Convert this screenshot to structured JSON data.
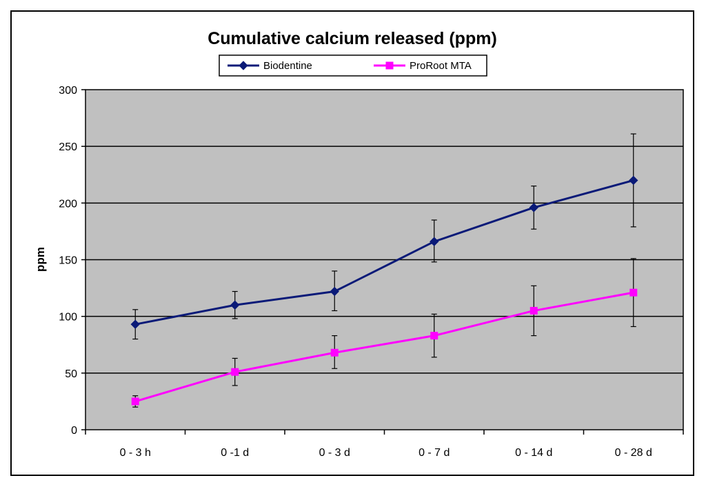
{
  "chart_data": {
    "type": "line",
    "title": "Cumulative calcium released (ppm)",
    "xlabel": "",
    "ylabel": "ppm",
    "ylim": [
      0,
      300
    ],
    "yticks": [
      0,
      50,
      100,
      150,
      200,
      250,
      300
    ],
    "grid": true,
    "legend_position": "top",
    "categories": [
      "0 - 3 h",
      "0 -1 d",
      "0 - 3 d",
      "0 - 7 d",
      "0 - 14 d",
      "0 - 28 d"
    ],
    "series": [
      {
        "name": "Biodentine",
        "color": "#0a1a78",
        "marker": "diamond",
        "values": [
          93,
          110,
          122,
          166,
          196,
          220
        ],
        "err_low": [
          80,
          98,
          105,
          148,
          177,
          179
        ],
        "err_high": [
          106,
          122,
          140,
          185,
          215,
          261
        ]
      },
      {
        "name": "ProRoot MTA",
        "color": "#ff00ff",
        "marker": "square",
        "values": [
          25,
          51,
          68,
          83,
          105,
          121
        ],
        "err_low": [
          20,
          39,
          54,
          64,
          83,
          91
        ],
        "err_high": [
          30,
          63,
          83,
          102,
          127,
          151
        ]
      }
    ]
  },
  "style": {
    "plot_background": "#c0c0c0",
    "gridline_color": "#000000",
    "frame_color": "#000000"
  }
}
